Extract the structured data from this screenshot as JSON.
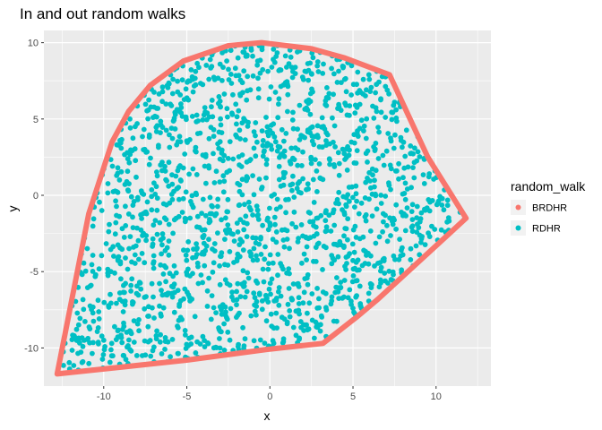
{
  "chart_data": {
    "type": "scatter",
    "title": "In and out random walks",
    "xlabel": "x",
    "ylabel": "y",
    "xlim": [
      -13.6,
      13.3
    ],
    "ylim": [
      -12.5,
      10.8
    ],
    "x_ticks": [
      -10,
      -5,
      0,
      5,
      10
    ],
    "y_ticks": [
      -10,
      -5,
      0,
      5,
      10
    ],
    "x_tick_labels": [
      "-10",
      "-5",
      "0",
      "5",
      "10"
    ],
    "y_tick_labels": [
      "-10",
      "-5",
      "0",
      "5",
      "10"
    ],
    "grid": true,
    "legend_title": "random_walk",
    "legend_position": "right",
    "series": [
      {
        "name": "BRDHR",
        "color": "#f8766d",
        "type": "path",
        "points": [
          [
            -12.8,
            -11.7
          ],
          [
            -11.5,
            -4.5
          ],
          [
            -10.9,
            -1.2
          ],
          [
            -9.5,
            3.5
          ],
          [
            -8.5,
            5.5
          ],
          [
            -7.2,
            7.2
          ],
          [
            -5.2,
            8.8
          ],
          [
            -2.5,
            9.8
          ],
          [
            -0.5,
            10.0
          ],
          [
            2.5,
            9.6
          ],
          [
            4.5,
            9.0
          ],
          [
            7.2,
            7.9
          ],
          [
            9.5,
            2.5
          ],
          [
            11.8,
            -1.5
          ],
          [
            6.5,
            -6.8
          ],
          [
            5.2,
            -8.0
          ],
          [
            3.2,
            -9.7
          ],
          [
            -0.2,
            -10.1
          ],
          [
            -5.0,
            -10.8
          ],
          [
            -12.8,
            -11.7
          ]
        ]
      },
      {
        "name": "RDHR",
        "color": "#00bfc4",
        "type": "scatter",
        "point_count": 1700,
        "region": "interior of BRDHR path"
      }
    ]
  }
}
